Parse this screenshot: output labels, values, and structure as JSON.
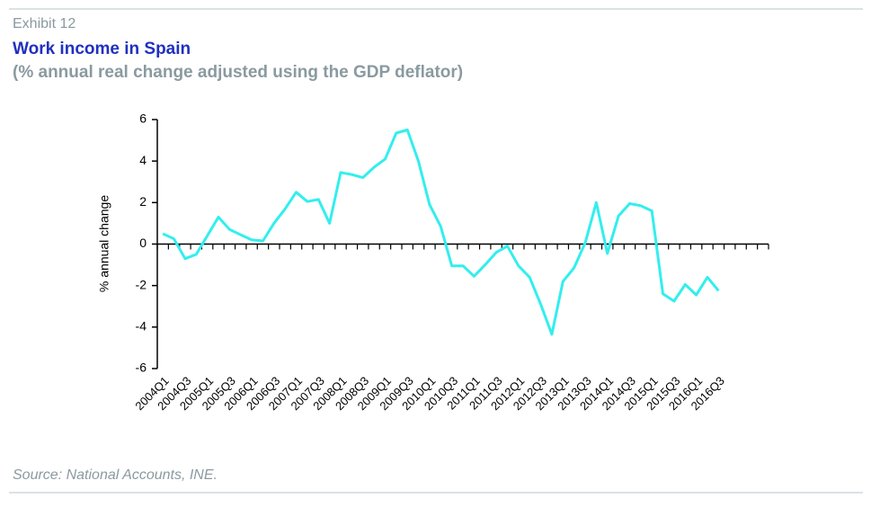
{
  "exhibit": "Exhibit 12",
  "chart_data": {
    "type": "line",
    "title": "Work income in Spain",
    "subtitle": "(% annual real change adjusted using the GDP deflator)",
    "y_label": "% annual change",
    "source": "Source: National Accounts, INE.",
    "categories": [
      "2004Q1",
      null,
      "2004Q3",
      null,
      "2005Q1",
      null,
      "2005Q3",
      null,
      "2006Q1",
      null,
      "2006Q3",
      null,
      "2007Q1",
      null,
      "2007Q3",
      null,
      "2008Q1",
      null,
      "2008Q3",
      null,
      "2009Q1",
      null,
      "2009Q3",
      null,
      "2010Q1",
      null,
      "2010Q3",
      null,
      "2011Q1",
      null,
      "2011Q3",
      null,
      "2012Q1",
      null,
      "2012Q3",
      null,
      "2013Q1",
      null,
      "2013Q3",
      null,
      "2014Q1",
      null,
      "2014Q3",
      null,
      "2015Q1",
      null,
      "2015Q3",
      null,
      "2016Q1",
      null,
      "2016Q3",
      null,
      null,
      null,
      null
    ],
    "series": [
      {
        "name": "Work income",
        "color": "#33eeee",
        "values": [
          0.5,
          0.25,
          -0.7,
          -0.5,
          0.4,
          1.3,
          0.7,
          0.45,
          0.2,
          0.15,
          1.0,
          1.7,
          2.5,
          2.05,
          2.15,
          1.0,
          3.45,
          3.35,
          3.2,
          3.7,
          4.1,
          5.35,
          5.5,
          4.0,
          1.9,
          0.85,
          -1.05,
          -1.05,
          -1.55,
          -1.0,
          -0.4,
          -0.1,
          -1.05,
          -1.6,
          -2.9,
          -4.35,
          -1.8,
          -1.15,
          0.05,
          2.0,
          -0.45,
          1.35,
          1.95,
          1.85,
          1.6,
          -2.4,
          -2.75,
          -1.95,
          -2.45,
          -1.6,
          -2.25,
          null,
          null,
          null,
          null
        ]
      }
    ],
    "ylim": [
      -6,
      6
    ],
    "yticks": [
      -6,
      -4,
      -2,
      0,
      2,
      4,
      6
    ]
  }
}
